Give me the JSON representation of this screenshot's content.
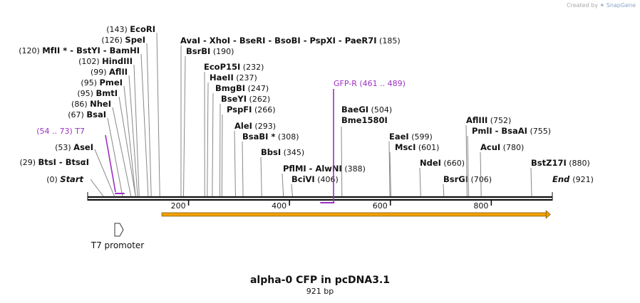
{
  "credit": {
    "prefix": "Created by",
    "brand": "SnapGene"
  },
  "title": "alpha-0 CFP in pcDNA3.1",
  "length_label": "921 bp",
  "sequence_length": 921,
  "ticks": [
    "200",
    "400",
    "600",
    "800"
  ],
  "tick_values": [
    200,
    400,
    600,
    800
  ],
  "terminals": [
    {
      "pos": "(0)",
      "name": "Start",
      "value": 0
    },
    {
      "pos": "(921)",
      "name": "End",
      "value": 921
    }
  ],
  "enzymes_left": [
    {
      "pos": "(29)",
      "names": "BtsI - BtsαI",
      "value": 29
    },
    {
      "pos": "(53)",
      "names": "AseI",
      "value": 53
    },
    {
      "pos": "(67)",
      "names": "BsaI",
      "value": 67
    },
    {
      "pos": "(86)",
      "names": "NheI",
      "value": 86
    },
    {
      "pos": "(95)",
      "names": "BmtI",
      "value": 95
    },
    {
      "pos": "(95)",
      "names": "PmeI",
      "value": 95
    },
    {
      "pos": "(99)",
      "names": "AflII",
      "value": 99
    },
    {
      "pos": "(102)",
      "names": "HindIII",
      "value": 102
    },
    {
      "pos": "(120)",
      "names": "MfII * - BstYI - BamHI",
      "value": 120
    },
    {
      "pos": "(126)",
      "names": "SpeI",
      "value": 126
    },
    {
      "pos": "(143)",
      "names": "EcoRI",
      "value": 143
    }
  ],
  "enzymes_right": [
    {
      "names": "AvaI - XhoI - BseRI - BsoBI - PspXI - PaeR7I",
      "pos": "(185)",
      "value": 185
    },
    {
      "names": "BsrBI",
      "pos": "(190)",
      "value": 190
    },
    {
      "names": "EcoP15I",
      "pos": "(232)",
      "value": 232
    },
    {
      "names": "HaeII",
      "pos": "(237)",
      "value": 237
    },
    {
      "names": "BmgBI",
      "pos": "(247)",
      "value": 247
    },
    {
      "names": "BseYI",
      "pos": "(262)",
      "value": 262
    },
    {
      "names": "PspFI",
      "pos": "(266)",
      "value": 266
    },
    {
      "names": "AleI",
      "pos": "(293)",
      "value": 293
    },
    {
      "names": "BsaBI *",
      "pos": "(308)",
      "value": 308
    },
    {
      "names": "BbsI",
      "pos": "(345)",
      "value": 345
    },
    {
      "names": "PflMI - AlwNI",
      "pos": "(388)",
      "value": 388
    },
    {
      "names": "BciVI",
      "pos": "(406)",
      "value": 406
    },
    {
      "names": "BaeGI",
      "pos": "(504)",
      "value": 504
    },
    {
      "names": "Bme1580I",
      "pos": "",
      "value": 504
    },
    {
      "names": "EaeI",
      "pos": "(599)",
      "value": 599
    },
    {
      "names": "MscI",
      "pos": "(601)",
      "value": 601
    },
    {
      "names": "NdeI",
      "pos": "(660)",
      "value": 660
    },
    {
      "names": "BsrGI",
      "pos": "(706)",
      "value": 706
    },
    {
      "names": "AflIII",
      "pos": "(752)",
      "value": 752
    },
    {
      "names": "PmlI - BsaAI",
      "pos": "(755)",
      "value": 755
    },
    {
      "names": "AcuI",
      "pos": "(780)",
      "value": 780
    },
    {
      "names": "BstZ17I",
      "pos": "(880)",
      "value": 880
    }
  ],
  "primers": [
    {
      "name": "T7",
      "range": "(54 .. 73)",
      "start": 54,
      "end": 73,
      "color": "#9b30c0"
    },
    {
      "name": "GFP-R",
      "range": "(461 .. 489)",
      "start": 461,
      "end": 489,
      "color": "#9b30c0"
    }
  ],
  "features": [
    {
      "name": "T7 promoter",
      "start": 54,
      "end": 73,
      "type": "promoter"
    }
  ],
  "orf": {
    "start": 147,
    "end": 917,
    "color": "#f0a000"
  }
}
